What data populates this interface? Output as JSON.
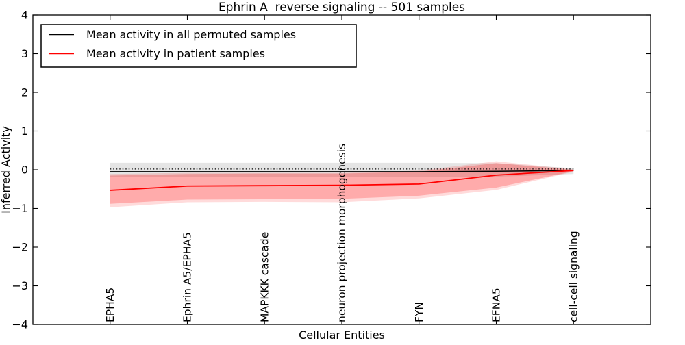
{
  "chart_data": {
    "type": "line",
    "title": "Ephrin A  reverse signaling -- 501 samples",
    "xlabel": "Cellular Entities",
    "ylabel": "Inferred Activity",
    "ylim": [
      -4,
      4
    ],
    "xlim_units": [
      -1,
      7
    ],
    "grid": false,
    "legend_position": "upper left",
    "categories": [
      "EPHA5",
      "Ephrin A5/EPHA5",
      "MAPKKK cascade",
      "neuron projection morphogenesis",
      "FYN",
      "EFNA5",
      "cell-cell signaling"
    ],
    "yticks": [
      -4,
      -3,
      -2,
      -1,
      0,
      1,
      2,
      3,
      4
    ],
    "ytick_labels": [
      "−4",
      "−3",
      "−2",
      "−1",
      "0",
      "1",
      "2",
      "3",
      "4"
    ],
    "series": [
      {
        "name": "Mean activity in all permuted samples",
        "color": "#000000",
        "line_width": 1.4,
        "values": [
          -0.05,
          -0.05,
          -0.05,
          -0.05,
          -0.05,
          -0.04,
          -0.02
        ]
      },
      {
        "name": "Mean activity in patient samples",
        "color": "#ff0000",
        "line_width": 1.8,
        "values": [
          -0.53,
          -0.42,
          -0.41,
          -0.4,
          -0.37,
          -0.14,
          -0.02
        ]
      }
    ],
    "reference_zero_line": {
      "y": 0.02,
      "style": "dotted",
      "color": "#000000"
    },
    "bands": [
      {
        "name": "permuted-samples-std-band",
        "color": "#000000",
        "alpha": 0.1,
        "upper": [
          0.18,
          0.18,
          0.18,
          0.18,
          0.18,
          0.17,
          0.04
        ],
        "lower": [
          -0.19,
          -0.19,
          -0.19,
          -0.19,
          -0.19,
          -0.18,
          -0.11
        ]
      },
      {
        "name": "patient-samples-std-band-outer",
        "color": "#ff0000",
        "alpha": 0.14,
        "upper": [
          -0.11,
          -0.08,
          -0.08,
          -0.08,
          -0.02,
          0.22,
          0.01
        ],
        "lower": [
          -0.97,
          -0.84,
          -0.83,
          -0.84,
          -0.74,
          -0.52,
          -0.05
        ]
      },
      {
        "name": "patient-samples-std-band-inner",
        "color": "#ff0000",
        "alpha": 0.22,
        "upper": [
          -0.15,
          -0.11,
          -0.1,
          -0.1,
          -0.05,
          0.17,
          0.0
        ],
        "lower": [
          -0.88,
          -0.77,
          -0.76,
          -0.75,
          -0.67,
          -0.46,
          -0.04
        ]
      }
    ]
  }
}
